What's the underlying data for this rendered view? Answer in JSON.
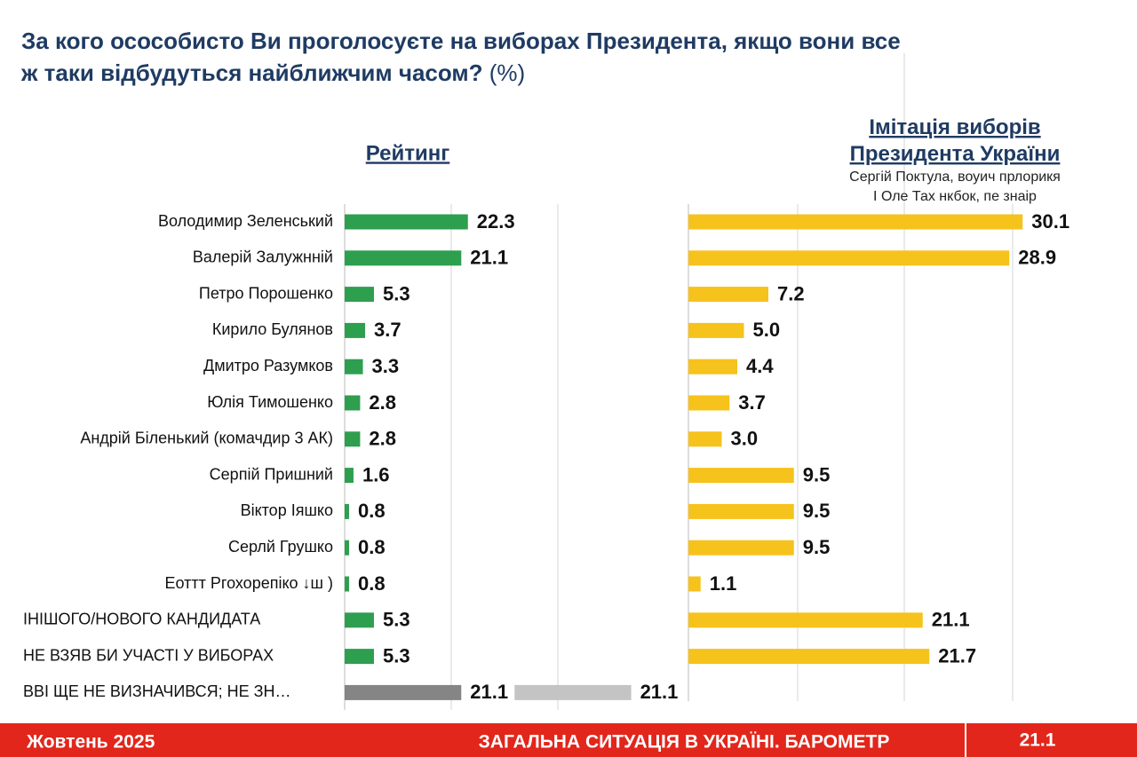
{
  "header": {
    "title": "За кого ососoбисто Ви проголосуєте на виборах Президента, якщо вони все ж таки відбудуться найближчим часом?",
    "title_unit": "(%)"
  },
  "chart_data": [
    {
      "type": "bar",
      "title": "Рейтинг",
      "categories": [
        "Володимир Зеленський",
        "Валерій Залужнній",
        "Петро Порошенко",
        "Кирило Булянов",
        "Дмитро Разумков",
        "Юлія Тимошенко",
        "Андрій Біленький (комачдир 3 АК)",
        "Серпій Пришний",
        "Віктор Іяшко",
        "Серлй Грушко",
        "Еоттт Ргохорепіко ↓ш )",
        "ІНІШОГО/НОВОГО КАНДИДАТА",
        "НЕ ВЗЯВ БИ УЧАСТІ У ВИБОРАХ",
        "ВВІ ЩЕ НЕ ВИЗНАЧИВСЯ; НЕ ЗН…"
      ],
      "values": [
        22.3,
        21.1,
        5.3,
        3.7,
        3.3,
        2.8,
        2.8,
        1.6,
        0.8,
        0.8,
        0.8,
        5.3,
        5.3,
        21.1
      ],
      "colors": [
        "#2e9e4f",
        "#2e9e4f",
        "#2e9e4f",
        "#2e9e4f",
        "#2e9e4f",
        "#2e9e4f",
        "#2e9e4f",
        "#2e9e4f",
        "#2e9e4f",
        "#2e9e4f",
        "#2e9e4f",
        "#2e9e4f",
        "#2e9e4f",
        "#858585"
      ],
      "values_2": [
        null,
        null,
        null,
        null,
        null,
        null,
        null,
        null,
        null,
        null,
        null,
        null,
        null,
        21.1
      ],
      "color_2": "#c4c4c4",
      "xlim": [
        0,
        45
      ]
    },
    {
      "type": "bar",
      "title": "Імітація виборів Президента України",
      "subtitle": [
        "Сергій Поктула, воуич прлорикя",
        "І Оле Тах нкбок, пе знаір"
      ],
      "values": [
        30.1,
        28.9,
        7.2,
        5.0,
        4.4,
        3.7,
        3.0,
        9.5,
        9.5,
        9.5,
        1.1,
        21.1,
        21.7
      ],
      "value_labels": [
        "30.1",
        "28.9",
        "7.2",
        "5.0",
        "4.4",
        "3.7",
        "3.0",
        "9.5",
        "9.5",
        "9.5",
        "1.1",
        "21.1",
        "21.7"
      ],
      "color": "#f6c21c",
      "xlim": [
        0,
        32
      ]
    }
  ],
  "footer": {
    "left": "Жовтень 2025",
    "center": "ЗАГАЛЬНА СИТУАЦІЯ В УКРАЇНІ. БАРОМЕТР",
    "right": "21.1"
  }
}
